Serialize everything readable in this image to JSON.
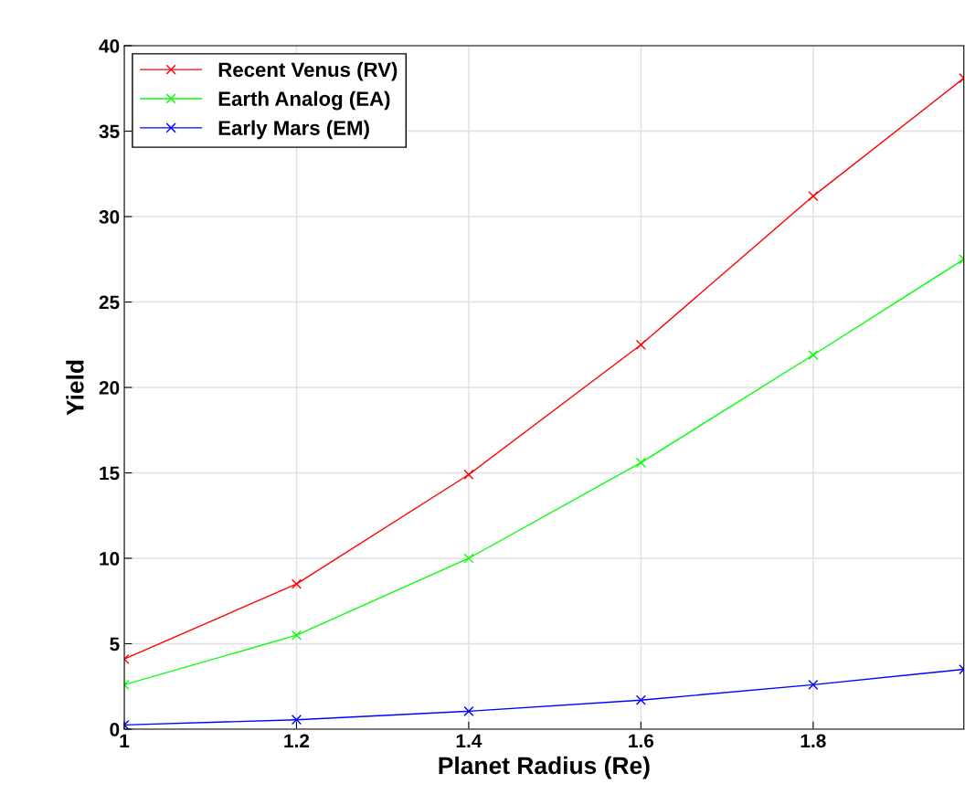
{
  "chart_data": {
    "type": "line",
    "xlabel": "Planet Radius (Re)",
    "ylabel": "Yield",
    "x": [
      1,
      1.2,
      1.4,
      1.6,
      1.8,
      1.975
    ],
    "series": [
      {
        "name": "Recent Venus (RV)",
        "color": "#ff0000",
        "values": [
          4.1,
          8.5,
          14.9,
          22.5,
          31.2,
          38.1
        ]
      },
      {
        "name": "Earth Analog (EA)",
        "color": "#00ff00",
        "values": [
          2.6,
          5.5,
          10.0,
          15.6,
          21.9,
          27.5
        ]
      },
      {
        "name": "Early Mars (EM)",
        "color": "#0000ff",
        "values": [
          0.25,
          0.55,
          1.05,
          1.7,
          2.6,
          3.5
        ]
      }
    ],
    "xlim": [
      1,
      1.975
    ],
    "xticks": [
      1,
      1.2,
      1.4,
      1.6,
      1.8
    ],
    "ylim": [
      0,
      40
    ],
    "yticks": [
      0,
      5,
      10,
      15,
      20,
      25,
      30,
      35,
      40
    ],
    "grid": true,
    "legend": "top left",
    "marker": "cross",
    "line_style": "solid"
  }
}
